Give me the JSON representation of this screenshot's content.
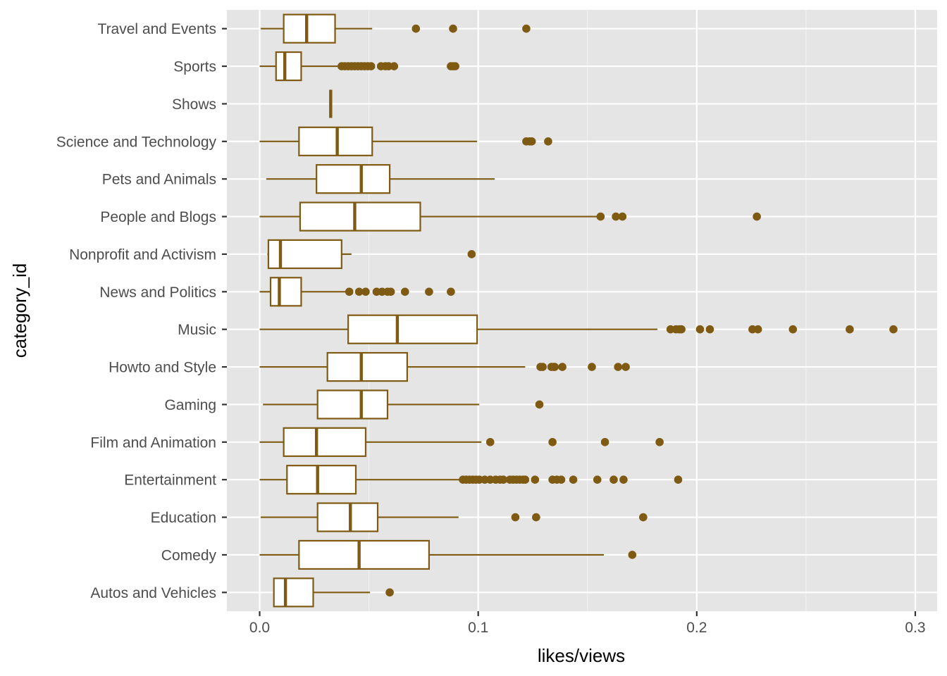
{
  "chart_data": {
    "type": "boxplot",
    "orientation": "horizontal",
    "xlabel": "likes/views",
    "ylabel": "category_id",
    "xlim": [
      -0.015,
      0.31
    ],
    "x_ticks": [
      0.0,
      0.1,
      0.2,
      0.3
    ],
    "x_tick_labels": [
      "0.0",
      "0.1",
      "0.2",
      "0.3"
    ],
    "grid": true,
    "colors": {
      "box_stroke": "#7f5a12",
      "box_fill": "#ffffff",
      "panel_background": "#e5e5e5",
      "grid_major": "#ffffff",
      "grid_minor": "#f2f2f2",
      "outlier": "#7f5a12"
    },
    "categories": [
      "Autos and Vehicles",
      "Comedy",
      "Education",
      "Entertainment",
      "Film and Animation",
      "Gaming",
      "Howto and Style",
      "Music",
      "News and Politics",
      "Nonprofit and Activism",
      "People and Blogs",
      "Pets and Animals",
      "Science and Technology",
      "Shows",
      "Sports",
      "Travel and Events"
    ],
    "boxes": [
      {
        "category": "Autos and Vehicles",
        "whisker_low": 0.0065,
        "q1": 0.0065,
        "median": 0.0118,
        "q3": 0.0245,
        "whisker_high": 0.0505,
        "outliers": [
          0.0595
        ]
      },
      {
        "category": "Comedy",
        "whisker_low": 0.0,
        "q1": 0.018,
        "median": 0.0455,
        "q3": 0.0775,
        "whisker_high": 0.1575,
        "outliers": [
          0.1705
        ]
      },
      {
        "category": "Education",
        "whisker_low": 0.0005,
        "q1": 0.0265,
        "median": 0.0415,
        "q3": 0.054,
        "whisker_high": 0.091,
        "outliers": [
          0.117,
          0.1265,
          0.1755
        ]
      },
      {
        "category": "Entertainment",
        "whisker_low": 0.0,
        "q1": 0.0125,
        "median": 0.0265,
        "q3": 0.044,
        "whisker_high": 0.092,
        "outliers": [
          0.093,
          0.0945,
          0.096,
          0.0975,
          0.099,
          0.1005,
          0.103,
          0.1055,
          0.108,
          0.11,
          0.1115,
          0.1145,
          0.116,
          0.1175,
          0.119,
          0.1205,
          0.1215,
          0.126,
          0.134,
          0.136,
          0.138,
          0.1435,
          0.1545,
          0.162,
          0.1665,
          0.1915
        ]
      },
      {
        "category": "Film and Animation",
        "whisker_low": 0.0,
        "q1": 0.011,
        "median": 0.026,
        "q3": 0.0485,
        "whisker_high": 0.1015,
        "outliers": [
          0.1055,
          0.134,
          0.158,
          0.183
        ]
      },
      {
        "category": "Gaming",
        "whisker_low": 0.0015,
        "q1": 0.0265,
        "median": 0.0465,
        "q3": 0.0585,
        "whisker_high": 0.1005,
        "outliers": [
          0.128
        ]
      },
      {
        "category": "Howto and Style",
        "whisker_low": 0.0,
        "q1": 0.031,
        "median": 0.0465,
        "q3": 0.0675,
        "whisker_high": 0.1215,
        "outliers": [
          0.1285,
          0.1295,
          0.1335,
          0.1345,
          0.135,
          0.1385,
          0.152,
          0.164,
          0.1675
        ]
      },
      {
        "category": "Music",
        "whisker_low": 0.0,
        "q1": 0.0405,
        "median": 0.063,
        "q3": 0.0995,
        "whisker_high": 0.182,
        "outliers": [
          0.188,
          0.1905,
          0.192,
          0.193,
          0.2015,
          0.206,
          0.2255,
          0.228,
          0.244,
          0.27,
          0.29
        ]
      },
      {
        "category": "News and Politics",
        "whisker_low": 0.0,
        "q1": 0.005,
        "median": 0.009,
        "q3": 0.019,
        "whisker_high": 0.0405,
        "outliers": [
          0.041,
          0.0455,
          0.0485,
          0.0535,
          0.056,
          0.0585,
          0.06,
          0.0665,
          0.0775,
          0.0875
        ]
      },
      {
        "category": "Nonprofit and Activism",
        "whisker_low": 0.0035,
        "q1": 0.004,
        "median": 0.0095,
        "q3": 0.0375,
        "whisker_high": 0.042,
        "outliers": [
          0.097
        ]
      },
      {
        "category": "People and Blogs",
        "whisker_low": 0.0,
        "q1": 0.0185,
        "median": 0.0435,
        "q3": 0.0735,
        "whisker_high": 0.1545,
        "outliers": [
          0.156,
          0.163,
          0.166,
          0.2275
        ]
      },
      {
        "category": "Pets and Animals",
        "whisker_low": 0.003,
        "q1": 0.026,
        "median": 0.0465,
        "q3": 0.0595,
        "whisker_high": 0.1075,
        "outliers": []
      },
      {
        "category": "Science and Technology",
        "whisker_low": 0.0,
        "q1": 0.018,
        "median": 0.0355,
        "q3": 0.0515,
        "whisker_high": 0.0995,
        "outliers": [
          0.122,
          0.1235,
          0.1245,
          0.132
        ]
      },
      {
        "category": "Shows",
        "whisker_low": 0.0325,
        "q1": 0.0325,
        "median": 0.0325,
        "q3": 0.0325,
        "whisker_high": 0.0325,
        "outliers": []
      },
      {
        "category": "Sports",
        "whisker_low": 0.0,
        "q1": 0.0075,
        "median": 0.0115,
        "q3": 0.019,
        "whisker_high": 0.036,
        "outliers": [
          0.0375,
          0.039,
          0.0405,
          0.042,
          0.0435,
          0.045,
          0.0465,
          0.048,
          0.0495,
          0.051,
          0.0555,
          0.0575,
          0.059,
          0.0615,
          0.0875,
          0.0885,
          0.0895
        ]
      },
      {
        "category": "Travel and Events",
        "whisker_low": 0.0005,
        "q1": 0.011,
        "median": 0.0215,
        "q3": 0.0345,
        "whisker_high": 0.0515,
        "outliers": [
          0.0715,
          0.0885,
          0.122
        ]
      }
    ]
  }
}
